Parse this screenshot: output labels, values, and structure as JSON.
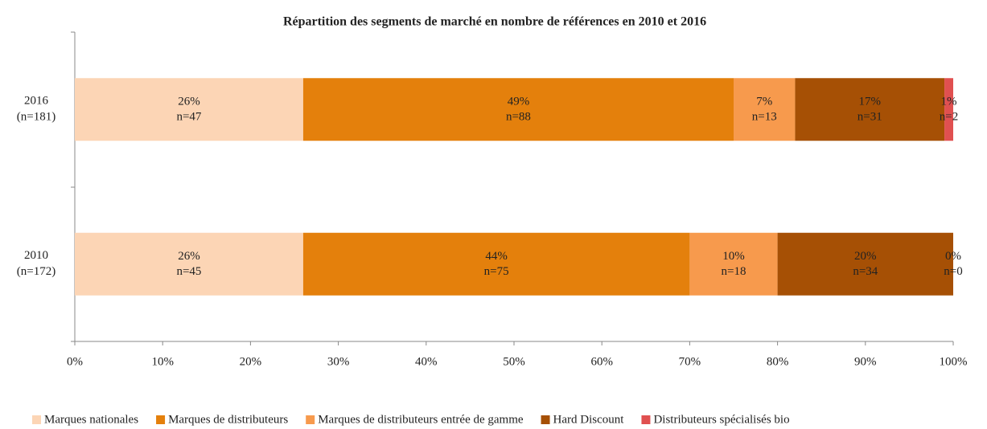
{
  "chart_data": {
    "type": "stacked_barh",
    "title": "Répartition des segments de marché en nombre de références en 2010 et 2016",
    "categories": [
      "2016",
      "2010"
    ],
    "category_subtitles": [
      "(n=181)",
      "(n=172)"
    ],
    "series": [
      {
        "name": "Marques nationales",
        "color": "#fcd5b5",
        "values": [
          26,
          26
        ],
        "value_labels": [
          "26%",
          "26%"
        ],
        "n_labels": [
          "n=47",
          "n=45"
        ]
      },
      {
        "name": "Marques de distributeurs",
        "color": "#e4800c",
        "values": [
          49,
          44
        ],
        "value_labels": [
          "49%",
          "44%"
        ],
        "n_labels": [
          "n=88",
          "n=75"
        ]
      },
      {
        "name": "Marques de distributeurs entrée de gamme",
        "color": "#f79a4d",
        "values": [
          7,
          10
        ],
        "value_labels": [
          "7%",
          "10%"
        ],
        "n_labels": [
          "n=13",
          "n=18"
        ]
      },
      {
        "name": "Hard Discount",
        "color": "#a65005",
        "values": [
          17,
          20
        ],
        "value_labels": [
          "17%",
          "20%"
        ],
        "n_labels": [
          "n=31",
          "n=34"
        ]
      },
      {
        "name": "Distributeurs spécialisés bio",
        "color": "#e05050",
        "values": [
          1,
          0
        ],
        "value_labels": [
          "1%",
          "0%"
        ],
        "n_labels": [
          "n=2",
          "n=0"
        ]
      }
    ],
    "xlim": [
      0,
      100
    ],
    "xticks": [
      {
        "value": 0,
        "label": "0%"
      },
      {
        "value": 10,
        "label": "10%"
      },
      {
        "value": 20,
        "label": "20%"
      },
      {
        "value": 30,
        "label": "30%"
      },
      {
        "value": 40,
        "label": "40%"
      },
      {
        "value": 50,
        "label": "50%"
      },
      {
        "value": 60,
        "label": "60%"
      },
      {
        "value": 70,
        "label": "70%"
      },
      {
        "value": 80,
        "label": "80%"
      },
      {
        "value": 90,
        "label": "90%"
      },
      {
        "value": 100,
        "label": "100%"
      }
    ],
    "legend": "bottom",
    "grid": false
  }
}
